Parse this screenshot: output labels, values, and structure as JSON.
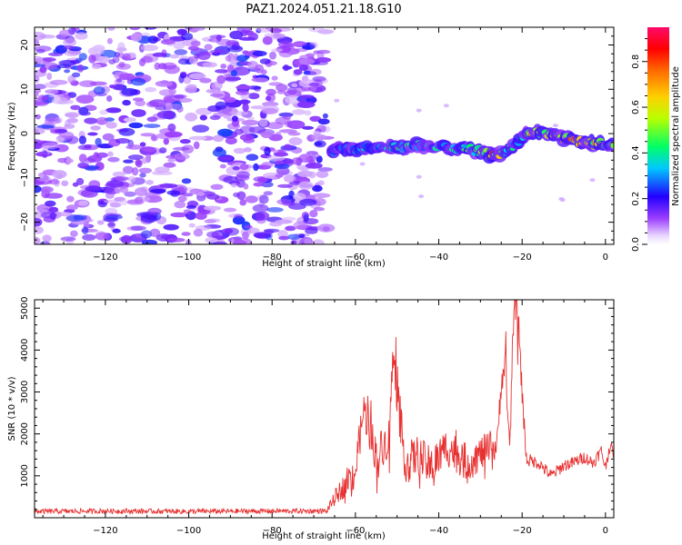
{
  "title": "PAZ1.2024.051.21.18.G10",
  "chart_data": [
    {
      "type": "heatmap",
      "xlabel": "Height of straight line (km)",
      "ylabel": "Frequency (Hz)",
      "xlim": [
        -137,
        2
      ],
      "ylim": [
        -25,
        24
      ],
      "xticks": [
        -120,
        -100,
        -80,
        -60,
        -40,
        -20,
        0
      ],
      "yticks": [
        -20,
        -10,
        0,
        10,
        20
      ],
      "noise_region": {
        "x": [
          -137,
          -67
        ],
        "y": [
          -25,
          24
        ],
        "amplitude": [
          0.05,
          0.25
        ]
      },
      "signal_band": [
        {
          "x": -66,
          "freq": -4,
          "amp": 0.35
        },
        {
          "x": -60,
          "freq": -3.5,
          "amp": 0.4
        },
        {
          "x": -55,
          "freq": -3,
          "amp": 0.4
        },
        {
          "x": -50,
          "freq": -3,
          "amp": 0.45
        },
        {
          "x": -45,
          "freq": -2.5,
          "amp": 0.4
        },
        {
          "x": -40,
          "freq": -3,
          "amp": 0.4
        },
        {
          "x": -35,
          "freq": -3.5,
          "amp": 0.45
        },
        {
          "x": -30,
          "freq": -4,
          "amp": 0.5
        },
        {
          "x": -27,
          "freq": -5,
          "amp": 0.85
        },
        {
          "x": -24,
          "freq": -4,
          "amp": 0.5
        },
        {
          "x": -21,
          "freq": -2,
          "amp": 0.4
        },
        {
          "x": -19,
          "freq": 0.5,
          "amp": 0.6
        },
        {
          "x": -15,
          "freq": 0,
          "amp": 0.7
        },
        {
          "x": -10,
          "freq": -1,
          "amp": 0.75
        },
        {
          "x": -5,
          "freq": -2,
          "amp": 0.8
        },
        {
          "x": 0,
          "freq": -2.5,
          "amp": 0.6
        },
        {
          "x": 2,
          "freq": -3,
          "amp": 0.5
        }
      ],
      "colorbar": {
        "label": "Normalized spectral amplitude",
        "range": [
          0,
          0.95
        ],
        "ticks": [
          0.0,
          0.2,
          0.4,
          0.6,
          0.8
        ],
        "colormap": "gist_rainbow_r"
      }
    },
    {
      "type": "line",
      "xlabel": "Height of straight line (km)",
      "ylabel": "SNR (10 * v/v)",
      "xlim": [
        -137,
        2
      ],
      "ylim": [
        0,
        5200
      ],
      "xticks": [
        -120,
        -100,
        -80,
        -60,
        -40,
        -20,
        0
      ],
      "yticks": [
        1000,
        2000,
        3000,
        4000,
        5000
      ],
      "line_color": "#e83030",
      "series": [
        {
          "points": [
            [
              -137,
              150
            ],
            [
              -120,
              160
            ],
            [
              -100,
              150
            ],
            [
              -80,
              160
            ],
            [
              -67,
              160
            ],
            [
              -64,
              600
            ],
            [
              -60,
              1100
            ],
            [
              -58,
              2600
            ],
            [
              -55,
              1500
            ],
            [
              -52,
              1900
            ],
            [
              -51,
              3800
            ],
            [
              -48,
              1300
            ],
            [
              -45,
              1500
            ],
            [
              -42,
              1200
            ],
            [
              -38,
              1700
            ],
            [
              -33,
              1300
            ],
            [
              -29,
              1600
            ],
            [
              -26,
              1700
            ],
            [
              -25,
              3300
            ],
            [
              -24,
              3600
            ],
            [
              -23,
              1500
            ],
            [
              -22,
              4900
            ],
            [
              -21,
              5200
            ],
            [
              -20.5,
              3800
            ],
            [
              -19,
              1400
            ],
            [
              -16,
              1300
            ],
            [
              -13,
              1000
            ],
            [
              -10,
              1250
            ],
            [
              -8,
              1300
            ],
            [
              -5,
              1450
            ],
            [
              -3,
              1300
            ],
            [
              -1,
              1600
            ],
            [
              0,
              1200
            ],
            [
              1,
              1700
            ],
            [
              2,
              1550
            ]
          ],
          "noise_scale": [
            [
              -137,
              60
            ],
            [
              -67,
              60
            ],
            [
              -60,
              450
            ],
            [
              -40,
              500
            ],
            [
              -28,
              400
            ],
            [
              -20,
              300
            ],
            [
              -18,
              150
            ],
            [
              0,
              150
            ],
            [
              2,
              150
            ]
          ]
        }
      ]
    }
  ]
}
